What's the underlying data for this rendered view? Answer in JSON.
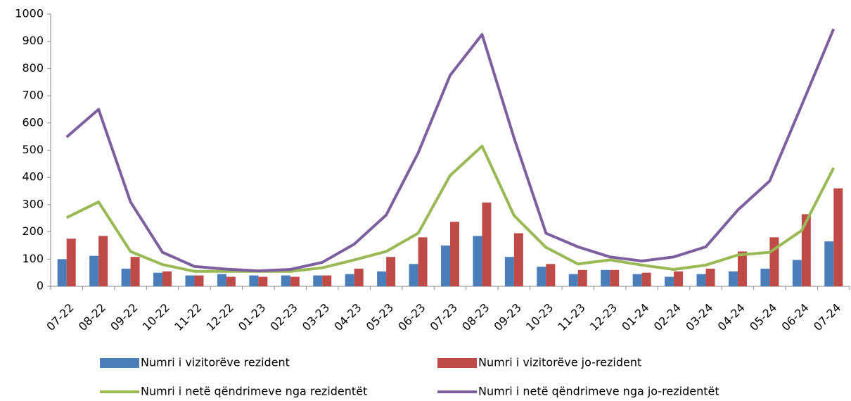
{
  "chart_data": {
    "type": "bar_line",
    "categories": [
      "07-22",
      "08-22",
      "09-22",
      "10-22",
      "11-22",
      "12-22",
      "01-23",
      "02-23",
      "03-23",
      "04-23",
      "05-23",
      "06-23",
      "07-23",
      "08-23",
      "09-23",
      "10-23",
      "11-23",
      "12-23",
      "01-24",
      "02-24",
      "03-24",
      "04-24",
      "05-24",
      "06-24",
      "07-24"
    ],
    "series": [
      {
        "name": "Numri i vizitorëve rezident",
        "type": "bar",
        "color": "#4a7ebb",
        "values": [
          100,
          112,
          65,
          50,
          40,
          45,
          40,
          40,
          40,
          45,
          55,
          82,
          150,
          185,
          108,
          72,
          45,
          60,
          45,
          35,
          45,
          55,
          65,
          97,
          165
        ]
      },
      {
        "name": "Numri i vizitorëve jo-rezident",
        "type": "bar",
        "color": "#be4b48",
        "values": [
          175,
          185,
          108,
          55,
          40,
          35,
          35,
          35,
          40,
          65,
          108,
          180,
          237,
          308,
          195,
          82,
          60,
          60,
          50,
          55,
          65,
          128,
          180,
          265,
          360
        ]
      },
      {
        "name": "Numri i netë qëndrimeve nga rezidentët",
        "type": "line",
        "color": "#98b954",
        "values": [
          252,
          310,
          128,
          80,
          55,
          55,
          55,
          55,
          68,
          97,
          128,
          195,
          407,
          515,
          260,
          143,
          82,
          97,
          78,
          62,
          78,
          115,
          125,
          205,
          435
        ]
      },
      {
        "name": "Numri i netë qëndrimeve nga jo-rezidentët",
        "type": "line",
        "color": "#7d5fa0",
        "values": [
          548,
          650,
          310,
          125,
          73,
          63,
          57,
          62,
          88,
          155,
          262,
          490,
          775,
          925,
          545,
          195,
          145,
          108,
          93,
          108,
          145,
          280,
          387,
          665,
          945
        ]
      }
    ],
    "ylim": [
      0,
      1000
    ],
    "yticks": [
      0,
      100,
      200,
      300,
      400,
      500,
      600,
      700,
      800,
      900,
      1000
    ]
  }
}
